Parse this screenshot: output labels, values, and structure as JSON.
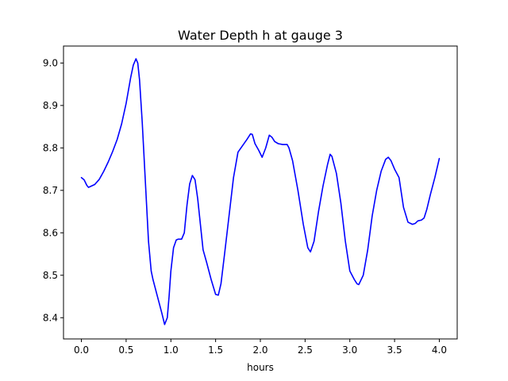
{
  "chart_data": {
    "type": "line",
    "title": "Water Depth h at gauge 3",
    "xlabel": "hours",
    "ylabel": "",
    "xlim": [
      -0.2,
      4.2
    ],
    "ylim": [
      8.35,
      9.04
    ],
    "grid": false,
    "xticks": [
      0.0,
      0.5,
      1.0,
      1.5,
      2.0,
      2.5,
      3.0,
      3.5,
      4.0
    ],
    "xtick_labels": [
      "0.0",
      "0.5",
      "1.0",
      "1.5",
      "2.0",
      "2.5",
      "3.0",
      "3.5",
      "4.0"
    ],
    "yticks": [
      8.4,
      8.5,
      8.6,
      8.7,
      8.8,
      8.9,
      9.0
    ],
    "ytick_labels": [
      "8.4",
      "8.5",
      "8.6",
      "8.7",
      "8.8",
      "8.9",
      "9.0"
    ],
    "series": [
      {
        "color": "#0000ff",
        "x": [
          0.0,
          0.03,
          0.06,
          0.08,
          0.1,
          0.15,
          0.2,
          0.25,
          0.3,
          0.35,
          0.4,
          0.45,
          0.5,
          0.55,
          0.58,
          0.61,
          0.63,
          0.65,
          0.68,
          0.72,
          0.75,
          0.78,
          0.8,
          0.85,
          0.9,
          0.93,
          0.96,
          0.98,
          1.0,
          1.03,
          1.06,
          1.08,
          1.12,
          1.15,
          1.18,
          1.21,
          1.24,
          1.27,
          1.3,
          1.33,
          1.36,
          1.4,
          1.45,
          1.5,
          1.53,
          1.56,
          1.6,
          1.65,
          1.7,
          1.75,
          1.8,
          1.85,
          1.89,
          1.91,
          1.94,
          1.98,
          2.02,
          2.06,
          2.1,
          2.13,
          2.16,
          2.2,
          2.25,
          2.3,
          2.32,
          2.36,
          2.42,
          2.48,
          2.53,
          2.56,
          2.6,
          2.65,
          2.7,
          2.75,
          2.78,
          2.8,
          2.85,
          2.9,
          2.95,
          3.0,
          3.05,
          3.08,
          3.1,
          3.15,
          3.2,
          3.25,
          3.3,
          3.35,
          3.4,
          3.43,
          3.46,
          3.5,
          3.55,
          3.6,
          3.65,
          3.7,
          3.73,
          3.76,
          3.8,
          3.83,
          3.86,
          3.9,
          3.95,
          4.0
        ],
        "y": [
          8.73,
          8.725,
          8.712,
          8.707,
          8.709,
          8.714,
          8.726,
          8.745,
          8.767,
          8.792,
          8.82,
          8.857,
          8.905,
          8.965,
          8.995,
          9.01,
          9.0,
          8.96,
          8.86,
          8.7,
          8.58,
          8.51,
          8.49,
          8.45,
          8.41,
          8.384,
          8.4,
          8.45,
          8.51,
          8.565,
          8.583,
          8.585,
          8.585,
          8.6,
          8.665,
          8.715,
          8.735,
          8.725,
          8.68,
          8.62,
          8.56,
          8.53,
          8.49,
          8.455,
          8.453,
          8.48,
          8.55,
          8.64,
          8.73,
          8.79,
          8.805,
          8.82,
          8.833,
          8.832,
          8.81,
          8.795,
          8.778,
          8.8,
          8.83,
          8.825,
          8.815,
          8.81,
          8.808,
          8.808,
          8.8,
          8.77,
          8.7,
          8.62,
          8.565,
          8.555,
          8.58,
          8.65,
          8.71,
          8.76,
          8.785,
          8.78,
          8.74,
          8.67,
          8.58,
          8.51,
          8.49,
          8.48,
          8.478,
          8.5,
          8.56,
          8.64,
          8.7,
          8.745,
          8.773,
          8.778,
          8.77,
          8.75,
          8.73,
          8.66,
          8.625,
          8.62,
          8.622,
          8.628,
          8.63,
          8.635,
          8.655,
          8.69,
          8.73,
          8.775
        ]
      }
    ]
  }
}
